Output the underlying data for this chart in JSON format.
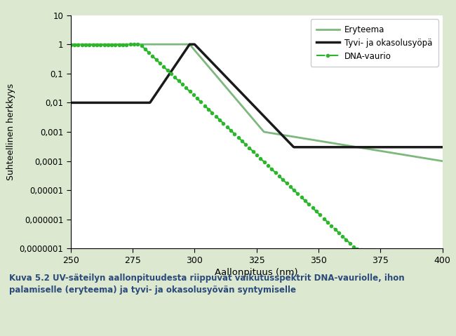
{
  "title": "",
  "xlabel": "Aallonpituus (nm)",
  "ylabel": "Suhteellinen herkkyys",
  "xlim": [
    250,
    400
  ],
  "xticks": [
    250,
    275,
    300,
    325,
    350,
    375,
    400
  ],
  "ytick_labels": [
    "0,0000001",
    "0,000001",
    "0,00001",
    "0,0001",
    "0,001",
    "0,01",
    "0,1",
    "1",
    "10"
  ],
  "ytick_values": [
    1e-07,
    1e-06,
    1e-05,
    0.0001,
    0.001,
    0.01,
    0.1,
    1.0,
    10.0
  ],
  "bg_color": "#dce8d0",
  "plot_bg_color": "#ffffff",
  "legend_labels": [
    "Eryteema",
    "Tyvi- ja okasolusyöpä",
    "DNA-vaurio"
  ],
  "line_colors_ery": "#7db87d",
  "line_colors_sq": "#1a1a1a",
  "line_colors_dna": "#2db52d",
  "caption": "Kuva 5.2 UV-säteilyn aallonpituudesta riippuvat vaikutusspektrit DNA-vauriolle, ihon\npalamiselle (eryteema) ja tyvi- ja okasolusyövän syntymiselle"
}
